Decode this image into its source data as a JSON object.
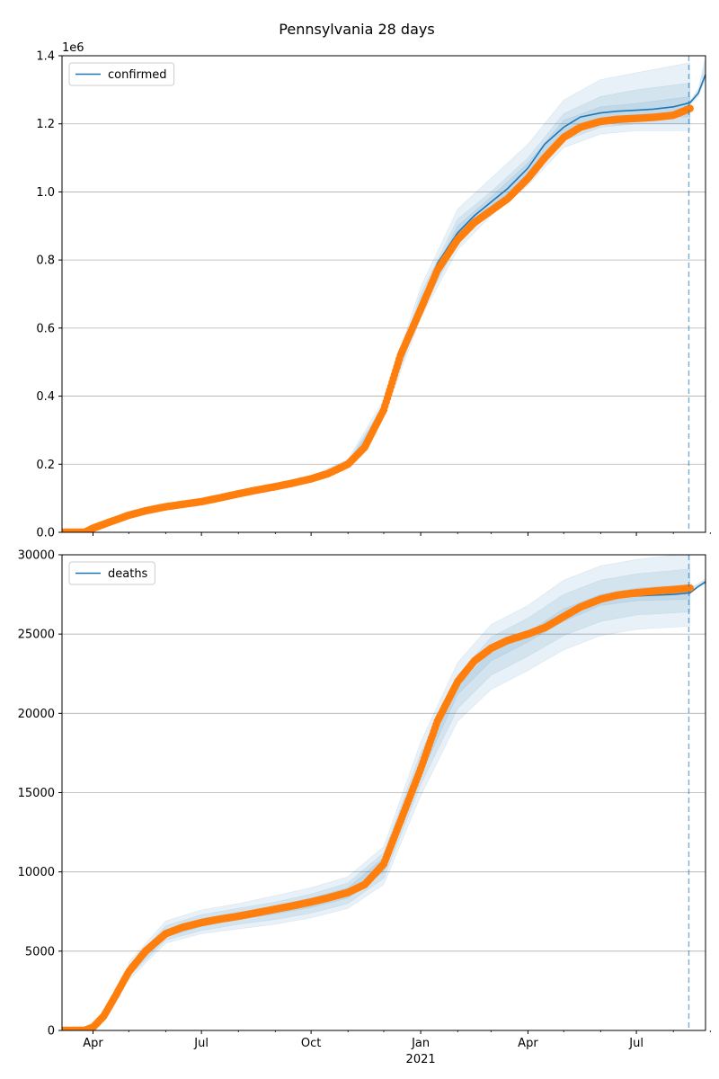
{
  "figure": {
    "title": "Pennsylvania 28 days"
  },
  "colors": {
    "model": "#1f77b4",
    "observed": "#ff7f0e",
    "band": "#1f77b4",
    "grid": "#b0b0b0",
    "forecast_line": "#1f77b4"
  },
  "chart_data": [
    {
      "type": "line",
      "name": "confirmed",
      "legend": "confirmed",
      "legend_position": "top-left",
      "offset_label": "1e6",
      "grid": "horizontal",
      "xlim": [
        "2020-03-06",
        "2021-08-28"
      ],
      "ylim": [
        0,
        1.4
      ],
      "yticks": [
        0.0,
        0.2,
        0.4,
        0.6,
        0.8,
        1.0,
        1.2,
        1.4
      ],
      "ytick_labels": [
        "0.0",
        "0.2",
        "0.4",
        "0.6",
        "0.8",
        "1.0",
        "1.2",
        "1.4"
      ],
      "forecast_start": "2021-08-14",
      "observed": {
        "x": [
          "2020-03-06",
          "2020-03-25",
          "2020-04-01",
          "2020-04-15",
          "2020-05-01",
          "2020-05-15",
          "2020-06-01",
          "2020-06-15",
          "2020-07-01",
          "2020-07-15",
          "2020-08-01",
          "2020-08-15",
          "2020-09-01",
          "2020-09-15",
          "2020-10-01",
          "2020-10-15",
          "2020-11-01",
          "2020-11-15",
          "2020-12-01",
          "2020-12-15",
          "2021-01-01",
          "2021-01-15",
          "2021-02-01",
          "2021-02-15",
          "2021-03-01",
          "2021-03-15",
          "2021-04-01",
          "2021-04-15",
          "2021-05-01",
          "2021-05-15",
          "2021-06-01",
          "2021-06-15",
          "2021-07-01",
          "2021-07-15",
          "2021-08-01",
          "2021-08-15"
        ],
        "y": [
          0.0,
          0.0,
          0.012,
          0.03,
          0.05,
          0.063,
          0.075,
          0.082,
          0.09,
          0.1,
          0.113,
          0.123,
          0.134,
          0.144,
          0.157,
          0.172,
          0.2,
          0.25,
          0.36,
          0.52,
          0.655,
          0.77,
          0.86,
          0.91,
          0.945,
          0.98,
          1.04,
          1.1,
          1.16,
          1.19,
          1.207,
          1.213,
          1.216,
          1.219,
          1.225,
          1.245
        ]
      },
      "model": {
        "x": [
          "2020-03-06",
          "2020-03-25",
          "2020-04-01",
          "2020-04-15",
          "2020-05-01",
          "2020-05-15",
          "2020-06-01",
          "2020-06-15",
          "2020-07-01",
          "2020-07-15",
          "2020-08-01",
          "2020-08-15",
          "2020-09-01",
          "2020-09-15",
          "2020-10-01",
          "2020-10-15",
          "2020-11-01",
          "2020-11-15",
          "2020-12-01",
          "2020-12-15",
          "2021-01-01",
          "2021-01-15",
          "2021-02-01",
          "2021-02-15",
          "2021-03-01",
          "2021-03-15",
          "2021-04-01",
          "2021-04-15",
          "2021-05-01",
          "2021-05-15",
          "2021-06-01",
          "2021-06-15",
          "2021-07-01",
          "2021-07-15",
          "2021-08-01",
          "2021-08-15",
          "2021-08-22",
          "2021-08-28"
        ],
        "y": [
          0.0,
          0.0,
          0.012,
          0.03,
          0.05,
          0.063,
          0.075,
          0.082,
          0.09,
          0.1,
          0.113,
          0.123,
          0.134,
          0.144,
          0.157,
          0.172,
          0.2,
          0.25,
          0.36,
          0.52,
          0.67,
          0.79,
          0.88,
          0.93,
          0.97,
          1.01,
          1.07,
          1.14,
          1.19,
          1.22,
          1.232,
          1.237,
          1.24,
          1.243,
          1.25,
          1.262,
          1.29,
          1.345
        ]
      },
      "bands": [
        {
          "x": [
            "2020-10-01",
            "2020-11-01",
            "2020-12-01",
            "2021-01-01",
            "2021-02-01",
            "2021-03-01",
            "2021-04-01",
            "2021-05-01",
            "2021-06-01",
            "2021-07-01",
            "2021-08-15"
          ],
          "lower": [
            0.15,
            0.19,
            0.34,
            0.63,
            0.83,
            0.93,
            1.02,
            1.13,
            1.17,
            1.18,
            1.18
          ],
          "upper": [
            0.165,
            0.215,
            0.39,
            0.72,
            0.95,
            1.04,
            1.14,
            1.27,
            1.33,
            1.35,
            1.38
          ]
        },
        {
          "x": [
            "2020-10-01",
            "2020-11-01",
            "2020-12-01",
            "2021-01-01",
            "2021-02-01",
            "2021-03-01",
            "2021-04-01",
            "2021-05-01",
            "2021-06-01",
            "2021-07-01",
            "2021-08-15"
          ],
          "lower": [
            0.153,
            0.194,
            0.35,
            0.645,
            0.85,
            0.945,
            1.035,
            1.15,
            1.19,
            1.2,
            1.2
          ],
          "upper": [
            0.161,
            0.208,
            0.375,
            0.7,
            0.92,
            1.0,
            1.1,
            1.23,
            1.28,
            1.3,
            1.32
          ]
        },
        {
          "x": [
            "2020-10-01",
            "2020-11-01",
            "2020-12-01",
            "2021-01-01",
            "2021-02-01",
            "2021-03-01",
            "2021-04-01",
            "2021-05-01",
            "2021-06-01",
            "2021-07-01",
            "2021-08-15"
          ],
          "lower": [
            0.155,
            0.197,
            0.355,
            0.655,
            0.865,
            0.955,
            1.05,
            1.165,
            1.21,
            1.22,
            1.22
          ],
          "upper": [
            0.159,
            0.203,
            0.365,
            0.685,
            0.9,
            0.985,
            1.085,
            1.21,
            1.25,
            1.26,
            1.28
          ]
        }
      ],
      "forecast_band": {
        "x": [
          "2021-08-15",
          "2021-08-22",
          "2021-08-28"
        ],
        "lower": [
          1.255,
          1.28,
          1.33
        ],
        "upper": [
          1.268,
          1.305,
          1.4
        ]
      }
    },
    {
      "type": "line",
      "name": "deaths",
      "legend": "deaths",
      "legend_position": "top-left",
      "offset_label": "",
      "grid": "horizontal",
      "xlim": [
        "2020-03-06",
        "2021-08-28"
      ],
      "ylim": [
        0,
        30000
      ],
      "yticks": [
        0,
        5000,
        10000,
        15000,
        20000,
        25000,
        30000
      ],
      "ytick_labels": [
        "0",
        "5000",
        "10000",
        "15000",
        "20000",
        "25000",
        "30000"
      ],
      "forecast_start": "2021-08-14",
      "observed": {
        "x": [
          "2020-03-06",
          "2020-03-25",
          "2020-04-01",
          "2020-04-10",
          "2020-04-20",
          "2020-05-01",
          "2020-05-15",
          "2020-06-01",
          "2020-06-15",
          "2020-07-01",
          "2020-07-15",
          "2020-08-01",
          "2020-08-15",
          "2020-09-01",
          "2020-09-15",
          "2020-10-01",
          "2020-10-15",
          "2020-11-01",
          "2020-11-15",
          "2020-12-01",
          "2020-12-15",
          "2021-01-01",
          "2021-01-15",
          "2021-02-01",
          "2021-02-15",
          "2021-03-01",
          "2021-03-15",
          "2021-04-01",
          "2021-04-15",
          "2021-05-01",
          "2021-05-15",
          "2021-06-01",
          "2021-06-15",
          "2021-07-01",
          "2021-07-15",
          "2021-08-01",
          "2021-08-15"
        ],
        "y": [
          0,
          0,
          200,
          900,
          2200,
          3700,
          5000,
          6100,
          6500,
          6800,
          7000,
          7200,
          7400,
          7650,
          7850,
          8100,
          8350,
          8700,
          9200,
          10500,
          13200,
          16500,
          19500,
          22000,
          23300,
          24100,
          24600,
          25000,
          25400,
          26100,
          26700,
          27200,
          27450,
          27600,
          27700,
          27800,
          27900
        ]
      },
      "model": {
        "x": [
          "2020-03-06",
          "2020-03-25",
          "2020-04-01",
          "2020-04-10",
          "2020-04-20",
          "2020-05-01",
          "2020-05-15",
          "2020-06-01",
          "2020-06-15",
          "2020-07-01",
          "2020-07-15",
          "2020-08-01",
          "2020-08-15",
          "2020-09-01",
          "2020-09-15",
          "2020-10-01",
          "2020-10-15",
          "2020-11-01",
          "2020-11-15",
          "2020-12-01",
          "2020-12-15",
          "2021-01-01",
          "2021-01-15",
          "2021-02-01",
          "2021-02-15",
          "2021-03-01",
          "2021-03-15",
          "2021-04-01",
          "2021-04-15",
          "2021-05-01",
          "2021-05-15",
          "2021-06-01",
          "2021-06-15",
          "2021-07-01",
          "2021-07-15",
          "2021-08-01",
          "2021-08-15",
          "2021-08-22",
          "2021-08-28"
        ],
        "y": [
          0,
          0,
          200,
          900,
          2200,
          3700,
          5000,
          6100,
          6500,
          6800,
          7000,
          7200,
          7400,
          7650,
          7850,
          8100,
          8350,
          8700,
          9200,
          10500,
          13200,
          16500,
          19800,
          22200,
          23200,
          23900,
          24400,
          24900,
          25500,
          26200,
          26800,
          27100,
          27300,
          27400,
          27450,
          27500,
          27600,
          28000,
          28300
        ]
      },
      "bands": [
        {
          "x": [
            "2020-05-01",
            "2020-06-01",
            "2020-07-01",
            "2020-08-01",
            "2020-09-01",
            "2020-10-01",
            "2020-11-01",
            "2020-12-01",
            "2021-01-01",
            "2021-02-01",
            "2021-03-01",
            "2021-04-01",
            "2021-05-01",
            "2021-06-01",
            "2021-07-01",
            "2021-08-15"
          ],
          "lower": [
            3200,
            5500,
            6100,
            6400,
            6700,
            7100,
            7700,
            9200,
            14800,
            19500,
            21500,
            22700,
            24000,
            24900,
            25300,
            25500
          ],
          "upper": [
            4300,
            6900,
            7600,
            8000,
            8500,
            9000,
            9700,
            11600,
            18200,
            23200,
            25600,
            26800,
            28400,
            29300,
            29700,
            30100
          ]
        },
        {
          "x": [
            "2020-05-01",
            "2020-06-01",
            "2020-07-01",
            "2020-08-01",
            "2020-09-01",
            "2020-10-01",
            "2020-11-01",
            "2020-12-01",
            "2021-01-01",
            "2021-02-01",
            "2021-03-01",
            "2021-04-01",
            "2021-05-01",
            "2021-06-01",
            "2021-07-01",
            "2021-08-15"
          ],
          "lower": [
            3400,
            5700,
            6300,
            6700,
            7000,
            7400,
            8000,
            9600,
            15500,
            20300,
            22400,
            23600,
            24900,
            25800,
            26200,
            26400
          ],
          "upper": [
            4100,
            6600,
            7300,
            7700,
            8100,
            8600,
            9300,
            11200,
            17500,
            22400,
            24800,
            26000,
            27500,
            28400,
            28800,
            29100
          ]
        },
        {
          "x": [
            "2020-05-01",
            "2020-06-01",
            "2020-07-01",
            "2020-08-01",
            "2020-09-01",
            "2020-10-01",
            "2020-11-01",
            "2020-12-01",
            "2021-01-01",
            "2021-02-01",
            "2021-03-01",
            "2021-04-01",
            "2021-05-01",
            "2021-06-01",
            "2021-07-01",
            "2021-08-15"
          ],
          "lower": [
            3550,
            5900,
            6550,
            7000,
            7350,
            7750,
            8350,
            10000,
            16100,
            21200,
            23300,
            24500,
            25800,
            26800,
            27100,
            27200
          ],
          "upper": [
            3900,
            6350,
            7050,
            7450,
            7850,
            8350,
            9000,
            10900,
            16900,
            21700,
            23900,
            25100,
            26600,
            27500,
            27900,
            28100
          ]
        }
      ],
      "forecast_band": {
        "x": [
          "2021-08-15",
          "2021-08-22",
          "2021-08-28"
        ],
        "lower": [
          27700,
          27950,
          28150
        ],
        "upper": [
          27950,
          28200,
          28500
        ]
      }
    }
  ],
  "x_axis": {
    "major_ticks": [
      {
        "date": "2020-04-01",
        "label": "Apr"
      },
      {
        "date": "2020-07-01",
        "label": "Jul"
      },
      {
        "date": "2020-10-01",
        "label": "Oct"
      },
      {
        "date": "2021-01-01",
        "label": "Jan"
      },
      {
        "date": "2021-04-01",
        "label": "Apr"
      },
      {
        "date": "2021-07-01",
        "label": "Jul"
      }
    ],
    "minor_ticks": [
      "2020-05-01",
      "2020-06-01",
      "2020-08-01",
      "2020-09-01",
      "2020-11-01",
      "2020-12-01",
      "2021-02-01",
      "2021-03-01",
      "2021-05-01",
      "2021-06-01",
      "2021-08-01",
      "2021-09-01"
    ],
    "year_label": {
      "date": "2021-01-01",
      "label": "2021"
    }
  }
}
